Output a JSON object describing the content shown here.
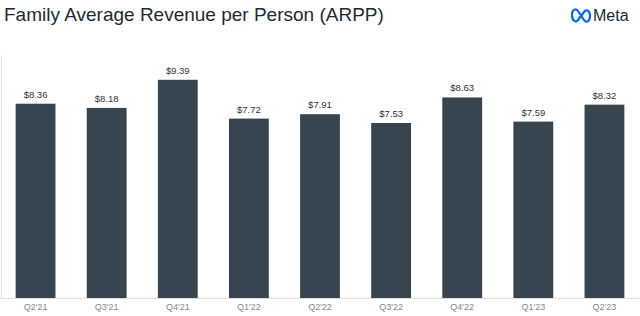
{
  "chart_data": {
    "type": "bar",
    "title": "Family Average Revenue per Person (ARPP)",
    "annotations": [
      "Meta"
    ],
    "categories": [
      "Q2'21",
      "Q3'21",
      "Q4'21",
      "Q1'22",
      "Q2'22",
      "Q3'22",
      "Q4'22",
      "Q1'23",
      "Q2'23"
    ],
    "values": [
      8.36,
      8.18,
      9.39,
      7.72,
      7.91,
      7.53,
      8.63,
      7.59,
      8.32
    ],
    "value_labels": [
      "$8.36",
      "$8.18",
      "$9.39",
      "$7.72",
      "$7.91",
      "$7.53",
      "$8.63",
      "$7.59",
      "$8.32"
    ],
    "color": "#36454f",
    "ylim": [
      0,
      10.5
    ],
    "yticks": [],
    "data_labels": true,
    "tick_labels": "x",
    "grid": false
  }
}
